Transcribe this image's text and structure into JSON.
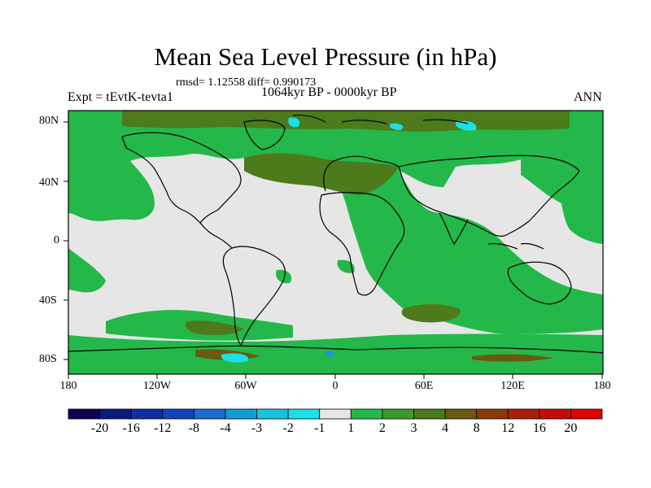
{
  "plot": {
    "title": "Mean Sea Level Pressure (in hPa)",
    "stats": "rmsd= 1.12558  diff= 0.990173",
    "period": "1064kyr BP - 0000kyr BP",
    "experiment": "Expt = tEvtK-tevta1",
    "season": "ANN"
  },
  "axes": {
    "lat_labels": [
      "80N",
      "40N",
      "0",
      "40S",
      "80S"
    ],
    "lon_labels": [
      "180",
      "120W",
      "60W",
      "0",
      "60E",
      "120E",
      "180"
    ]
  },
  "colorbar": {
    "labels": [
      "-20",
      "-16",
      "-12",
      "-8",
      "-4",
      "-3",
      "-2",
      "-1",
      "1",
      "2",
      "3",
      "4",
      "8",
      "12",
      "16",
      "20"
    ],
    "colors": [
      "#120055",
      "#0b1b7a",
      "#0f2fa0",
      "#1445b8",
      "#1d6ccf",
      "#159ad8",
      "#19c3e0",
      "#1ae0e8",
      "#e6e6e6",
      "#24b84a",
      "#3c9a2c",
      "#4d7a1a",
      "#6a5a10",
      "#8a3a0a",
      "#a8200a",
      "#c40c0c",
      "#e20000"
    ]
  },
  "colors": {
    "neutral": "#e6e6e6",
    "green": "#24b84a",
    "dark_olive": "#4d7a1a",
    "brown": "#6a5a10",
    "cyan": "#1ae0e8",
    "light_blue": "#159ad8"
  }
}
